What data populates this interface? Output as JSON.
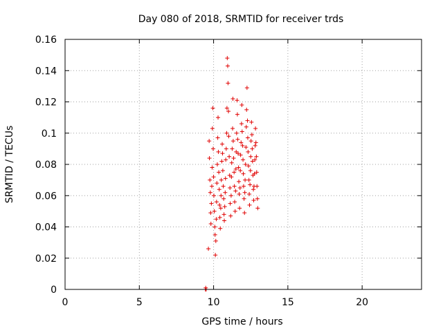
{
  "chart_data": {
    "type": "scatter",
    "title": "Day 080 of 2018, SRMTID for receiver trds",
    "xlabel": "GPS time / hours",
    "ylabel": "SRMTID / TECUs",
    "xlim": [
      0,
      24
    ],
    "ylim": [
      0,
      0.16
    ],
    "xticks": [
      0,
      5,
      10,
      15,
      20
    ],
    "xtick_labels": [
      "0",
      "5",
      "10",
      "15",
      "20"
    ],
    "yticks": [
      0,
      0.02,
      0.04,
      0.06,
      0.08,
      0.1,
      0.12,
      0.14,
      0.16
    ],
    "ytick_labels": [
      "0",
      "0.02",
      "0.04",
      "0.06",
      "0.08",
      "0.1",
      "0.12",
      "0.14",
      "0.16"
    ],
    "grid": true,
    "legend": "none",
    "marker": "plus",
    "color": "#e00000",
    "points": [
      [
        9.45,
        0.0
      ],
      [
        9.5,
        0.0
      ],
      [
        9.47,
        0.001
      ],
      [
        9.65,
        0.026
      ],
      [
        9.7,
        0.095
      ],
      [
        9.72,
        0.084
      ],
      [
        9.75,
        0.07
      ],
      [
        9.78,
        0.062
      ],
      [
        9.8,
        0.049
      ],
      [
        9.82,
        0.042
      ],
      [
        9.85,
        0.055
      ],
      [
        9.88,
        0.066
      ],
      [
        9.9,
        0.078
      ],
      [
        9.92,
        0.103
      ],
      [
        9.95,
        0.116
      ],
      [
        9.97,
        0.09
      ],
      [
        10.0,
        0.072
      ],
      [
        10.02,
        0.06
      ],
      [
        10.05,
        0.05
      ],
      [
        10.08,
        0.04
      ],
      [
        10.1,
        0.035
      ],
      [
        10.12,
        0.022
      ],
      [
        10.15,
        0.031
      ],
      [
        10.18,
        0.045
      ],
      [
        10.2,
        0.056
      ],
      [
        10.22,
        0.068
      ],
      [
        10.25,
        0.08
      ],
      [
        10.28,
        0.097
      ],
      [
        10.3,
        0.11
      ],
      [
        10.32,
        0.088
      ],
      [
        10.35,
        0.075
      ],
      [
        10.38,
        0.064
      ],
      [
        10.4,
        0.054
      ],
      [
        10.42,
        0.046
      ],
      [
        10.45,
        0.039
      ],
      [
        10.48,
        0.052
      ],
      [
        10.5,
        0.06
      ],
      [
        10.52,
        0.07
      ],
      [
        10.55,
        0.082
      ],
      [
        10.58,
        0.093
      ],
      [
        10.6,
        0.087
      ],
      [
        10.62,
        0.076
      ],
      [
        10.65,
        0.066
      ],
      [
        10.68,
        0.058
      ],
      [
        10.7,
        0.048
      ],
      [
        10.72,
        0.044
      ],
      [
        10.75,
        0.053
      ],
      [
        10.78,
        0.062
      ],
      [
        10.8,
        0.071
      ],
      [
        10.82,
        0.083
      ],
      [
        10.85,
        0.09
      ],
      [
        10.88,
        0.1
      ],
      [
        10.9,
        0.116
      ],
      [
        10.92,
        0.148
      ],
      [
        10.95,
        0.143
      ],
      [
        10.97,
        0.132
      ],
      [
        11.0,
        0.114
      ],
      [
        11.02,
        0.098
      ],
      [
        11.05,
        0.085
      ],
      [
        11.08,
        0.073
      ],
      [
        11.1,
        0.065
      ],
      [
        11.12,
        0.055
      ],
      [
        11.15,
        0.047
      ],
      [
        11.18,
        0.06
      ],
      [
        11.2,
        0.072
      ],
      [
        11.22,
        0.081
      ],
      [
        11.25,
        0.09
      ],
      [
        11.28,
        0.103
      ],
      [
        11.3,
        0.122
      ],
      [
        11.32,
        0.095
      ],
      [
        11.35,
        0.084
      ],
      [
        11.38,
        0.075
      ],
      [
        11.4,
        0.066
      ],
      [
        11.42,
        0.056
      ],
      [
        11.45,
        0.05
      ],
      [
        11.48,
        0.063
      ],
      [
        11.5,
        0.077
      ],
      [
        11.52,
        0.088
      ],
      [
        11.55,
        0.1
      ],
      [
        11.58,
        0.121
      ],
      [
        11.6,
        0.112
      ],
      [
        11.62,
        0.096
      ],
      [
        11.65,
        0.087
      ],
      [
        11.68,
        0.078
      ],
      [
        11.7,
        0.069
      ],
      [
        11.72,
        0.061
      ],
      [
        11.75,
        0.052
      ],
      [
        11.78,
        0.065
      ],
      [
        11.8,
        0.076
      ],
      [
        11.82,
        0.086
      ],
      [
        11.85,
        0.094
      ],
      [
        11.88,
        0.106
      ],
      [
        11.9,
        0.118
      ],
      [
        11.92,
        0.101
      ],
      [
        11.95,
        0.092
      ],
      [
        11.98,
        0.083
      ],
      [
        12.0,
        0.074
      ],
      [
        12.02,
        0.066
      ],
      [
        12.05,
        0.058
      ],
      [
        12.08,
        0.049
      ],
      [
        12.1,
        0.062
      ],
      [
        12.12,
        0.07
      ],
      [
        12.15,
        0.08
      ],
      [
        12.18,
        0.091
      ],
      [
        12.2,
        0.104
      ],
      [
        12.22,
        0.115
      ],
      [
        12.25,
        0.129
      ],
      [
        12.28,
        0.108
      ],
      [
        12.3,
        0.097
      ],
      [
        12.32,
        0.088
      ],
      [
        12.35,
        0.079
      ],
      [
        12.38,
        0.07
      ],
      [
        12.4,
        0.061
      ],
      [
        12.42,
        0.054
      ],
      [
        12.45,
        0.067
      ],
      [
        12.48,
        0.076
      ],
      [
        12.5,
        0.085
      ],
      [
        12.52,
        0.095
      ],
      [
        12.55,
        0.107
      ],
      [
        12.58,
        0.099
      ],
      [
        12.6,
        0.09
      ],
      [
        12.62,
        0.082
      ],
      [
        12.65,
        0.073
      ],
      [
        12.68,
        0.064
      ],
      [
        12.7,
        0.057
      ],
      [
        12.72,
        0.066
      ],
      [
        12.75,
        0.074
      ],
      [
        12.78,
        0.083
      ],
      [
        12.8,
        0.092
      ],
      [
        12.82,
        0.103
      ],
      [
        12.85,
        0.094
      ],
      [
        12.88,
        0.085
      ],
      [
        12.9,
        0.075
      ],
      [
        12.92,
        0.066
      ],
      [
        12.95,
        0.058
      ],
      [
        12.97,
        0.052
      ]
    ]
  }
}
